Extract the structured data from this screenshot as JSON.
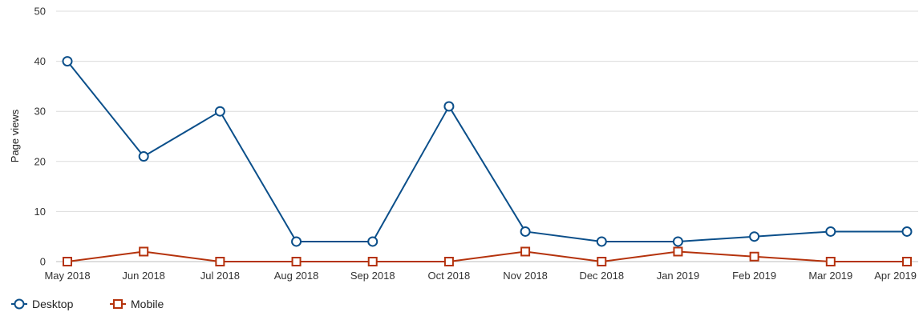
{
  "chart_data": {
    "type": "line",
    "ylabel": "Page views",
    "xlabel": "",
    "ylim": [
      0,
      50
    ],
    "yticks": [
      0,
      10,
      20,
      30,
      40,
      50
    ],
    "grid": true,
    "legend_position": "bottom-left",
    "categories": [
      "May 2018",
      "Jun 2018",
      "Jul 2018",
      "Aug 2018",
      "Sep 2018",
      "Oct 2018",
      "Nov 2018",
      "Dec 2018",
      "Jan 2019",
      "Feb 2019",
      "Mar 2019",
      "Apr 2019"
    ],
    "series": [
      {
        "name": "Desktop",
        "marker": "circle",
        "color": "#0b4f8a",
        "values": [
          40,
          21,
          30,
          4,
          4,
          31,
          6,
          4,
          4,
          5,
          6,
          6
        ]
      },
      {
        "name": "Mobile",
        "marker": "square",
        "color": "#b5330d",
        "values": [
          0,
          2,
          0,
          0,
          0,
          0,
          2,
          0,
          2,
          1,
          0,
          0
        ]
      }
    ]
  }
}
